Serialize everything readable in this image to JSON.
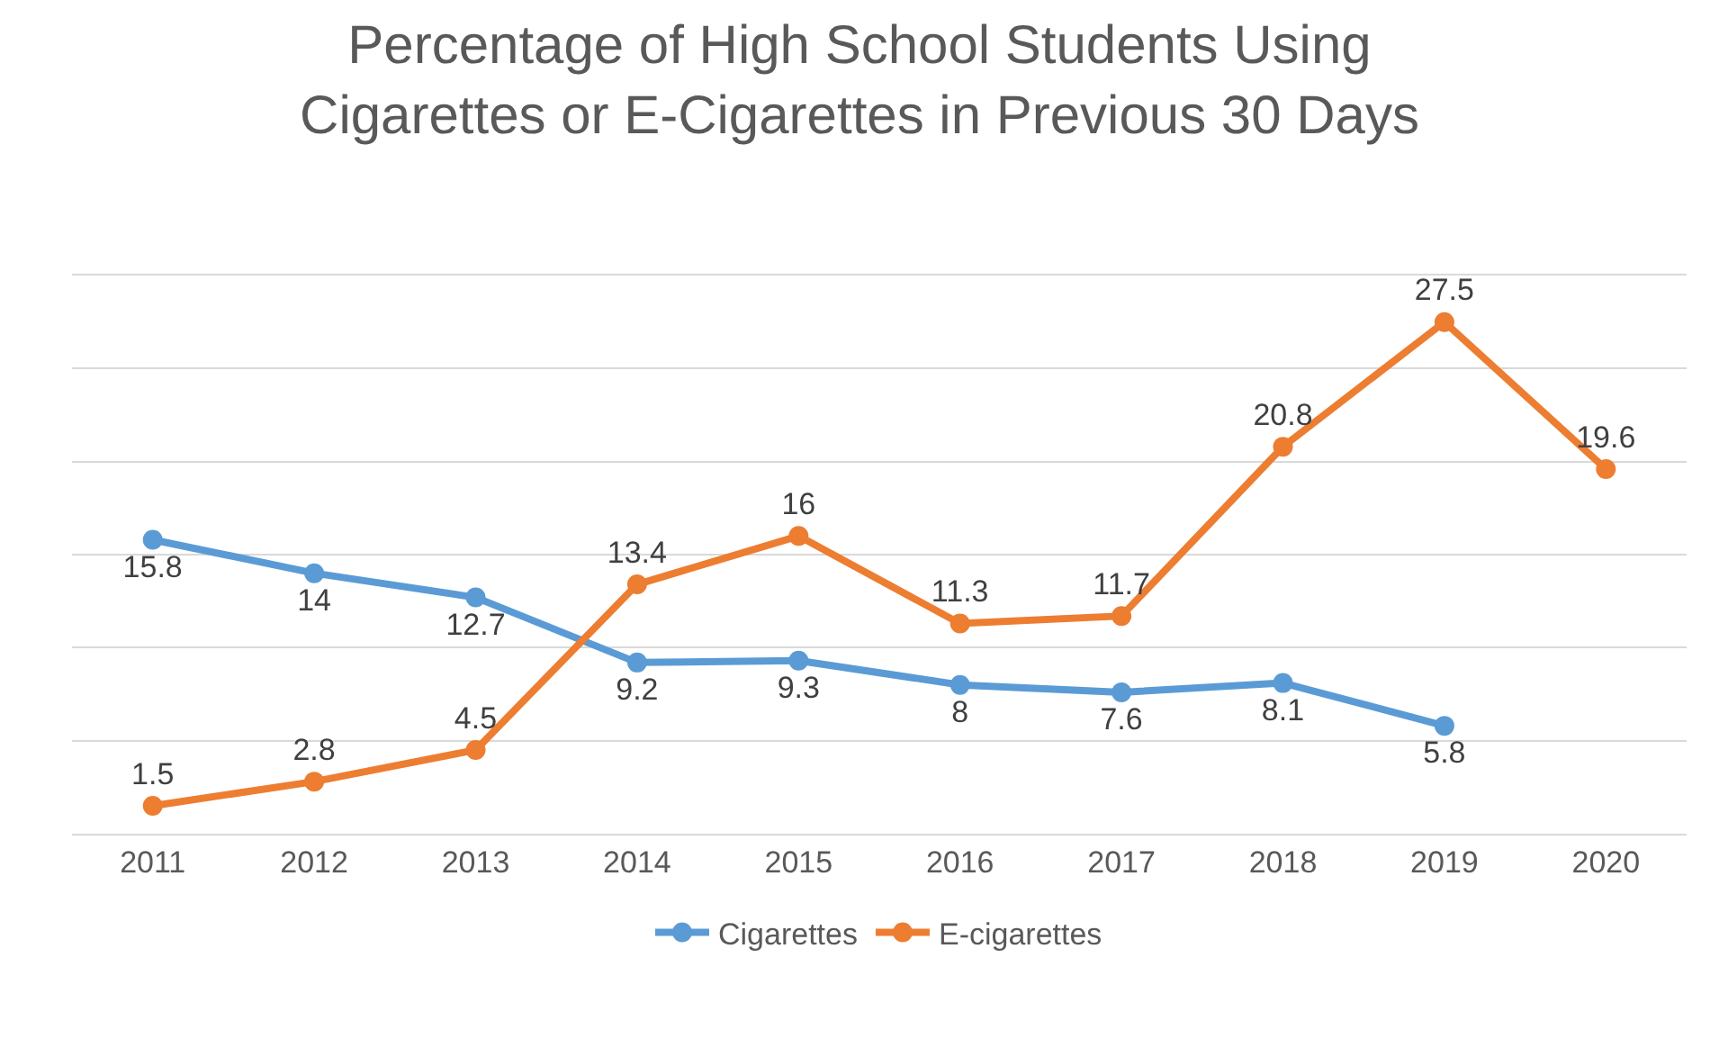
{
  "chart_data": {
    "type": "line",
    "title": "Percentage of High School Students Using\nCigarettes or E-Cigarettes in Previous 30 Days",
    "categories": [
      "2011",
      "2012",
      "2013",
      "2014",
      "2015",
      "2016",
      "2017",
      "2018",
      "2019",
      "2020"
    ],
    "series": [
      {
        "name": "Cigarettes",
        "color": "#5b9bd5",
        "values": [
          15.8,
          14,
          12.7,
          9.2,
          9.3,
          8,
          7.6,
          8.1,
          5.8,
          null
        ]
      },
      {
        "name": "E-cigarettes",
        "color": "#ed7d31",
        "values": [
          1.5,
          2.8,
          4.5,
          13.4,
          16,
          11.3,
          11.7,
          20.8,
          27.5,
          19.6
        ]
      }
    ],
    "ylim": [
      0,
      30
    ],
    "yticks": [
      {
        "value": 0,
        "label": null
      },
      {
        "value": 5,
        "label": null
      },
      {
        "value": 10,
        "label": null
      },
      {
        "value": 15,
        "label": null
      },
      {
        "value": 20,
        "label": null
      },
      {
        "value": 25,
        "label": null
      },
      {
        "value": 30,
        "label": null
      }
    ],
    "tick_labels": "x",
    "grid": "y",
    "legend": "bottom",
    "marker": "circle",
    "line_style": "solid",
    "data_labels": true
  }
}
